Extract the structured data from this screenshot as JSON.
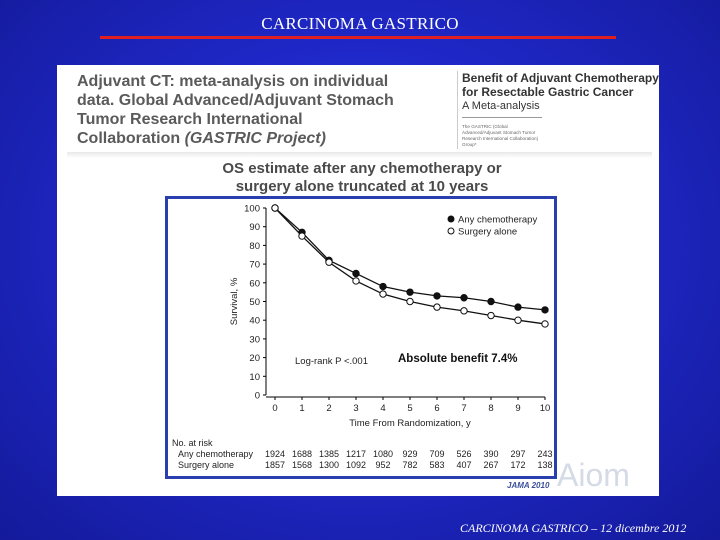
{
  "slide": {
    "title": "CARCINOMA GASTRICO",
    "footer": "CARCINOMA GASTRICO – 12 dicembre 2012"
  },
  "panel": {
    "header_lines": [
      "Adjuvant CT: meta-analysis on individual",
      "data. Global Advanced/Adjuvant Stomach",
      "Tumor Research International"
    ],
    "header_last_plain": "Collaboration ",
    "header_last_italic": "(GASTRIC Project)",
    "paper_title_1": "Benefit of Adjuvant Chemotherapy",
    "paper_title_2": "for Resectable Gastric Cancer",
    "paper_subtitle": "A Meta-analysis",
    "paper_authors": "The GASTRIC (Global Advanced/Adjuvant Stomach Tumor Research International Collaboration) Group*",
    "chart_heading_1": "OS estimate after any chemotherapy or",
    "chart_heading_2": "surgery alone truncated at 10 years",
    "journal": "JAMA 2010",
    "logo_text": "Aiom"
  },
  "chart_data": {
    "type": "line",
    "xlabel": "Time From Randomization, y",
    "ylabel": "Survival, %",
    "xlim": [
      0,
      10
    ],
    "ylim": [
      0,
      100
    ],
    "x_ticks": [
      0,
      1,
      2,
      3,
      4,
      5,
      6,
      7,
      8,
      9,
      10
    ],
    "y_ticks": [
      0,
      10,
      20,
      30,
      40,
      50,
      60,
      70,
      80,
      90,
      100
    ],
    "x": [
      0,
      1,
      2,
      3,
      4,
      5,
      6,
      7,
      8,
      9,
      10
    ],
    "series": [
      {
        "name": "Any chemotherapy",
        "marker": "filled",
        "values": [
          100,
          87,
          72,
          65,
          58,
          55,
          53,
          52,
          50,
          47,
          45.5
        ]
      },
      {
        "name": "Surgery alone",
        "marker": "open",
        "values": [
          100,
          85,
          71,
          61,
          54,
          50,
          47,
          45,
          42.5,
          40,
          38
        ]
      }
    ],
    "annotation_logrank": "Log-rank P <.001",
    "annotation_benefit": "Absolute  benefit  7.4%",
    "at_risk": {
      "header": "No. at risk",
      "rows": [
        {
          "label": "Any chemotherapy",
          "values": [
            1924,
            1688,
            1385,
            1217,
            1080,
            929,
            709,
            526,
            390,
            297,
            243
          ]
        },
        {
          "label": "Surgery alone",
          "values": [
            1857,
            1568,
            1300,
            1092,
            952,
            782,
            583,
            407,
            267,
            172,
            138
          ]
        }
      ]
    }
  }
}
